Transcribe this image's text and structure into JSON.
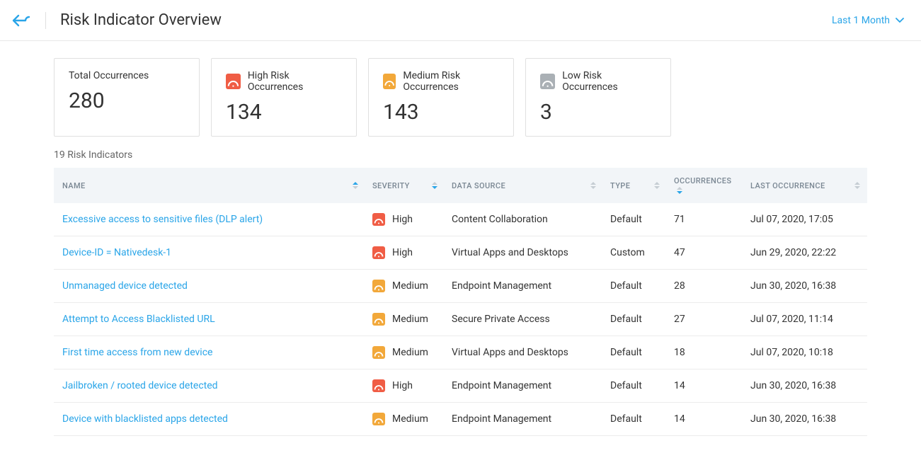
{
  "header": {
    "title": "Risk Indicator Overview",
    "time_range": "Last 1 Month"
  },
  "colors": {
    "accent": "#2aa5e8",
    "high": "#f05d45",
    "medium": "#f2a83a",
    "low": "#aab0b5"
  },
  "cards": {
    "total": {
      "label": "Total Occurrences",
      "value": "280"
    },
    "high": {
      "label": "High Risk Occurrences",
      "value": "134"
    },
    "medium": {
      "label": "Medium Risk Occurrences",
      "value": "143"
    },
    "low": {
      "label": "Low Risk Occurrences",
      "value": "3"
    }
  },
  "table": {
    "count_label": "19 Risk Indicators",
    "columns": {
      "name": "NAME",
      "severity": "SEVERITY",
      "data_source": "DATA SOURCE",
      "type": "TYPE",
      "occurrences": "OCCURRENCES",
      "last_occurrence": "LAST OCCURRENCE"
    },
    "rows": [
      {
        "name": "Excessive access to sensitive files (DLP alert)",
        "severity": "High",
        "sev_level": "high",
        "data_source": "Content Collaboration",
        "type": "Default",
        "occurrences": "71",
        "last": "Jul 07, 2020, 17:05"
      },
      {
        "name": "Device-ID = Nativedesk-1",
        "severity": "High",
        "sev_level": "high",
        "data_source": "Virtual Apps and Desktops",
        "type": "Custom",
        "occurrences": "47",
        "last": "Jun 29, 2020, 22:22"
      },
      {
        "name": "Unmanaged device detected",
        "severity": "Medium",
        "sev_level": "medium",
        "data_source": "Endpoint Management",
        "type": "Default",
        "occurrences": "28",
        "last": "Jun 30, 2020, 16:38"
      },
      {
        "name": "Attempt to Access Blacklisted URL",
        "severity": "Medium",
        "sev_level": "medium",
        "data_source": "Secure Private Access",
        "type": "Default",
        "occurrences": "27",
        "last": "Jul 07, 2020, 11:14"
      },
      {
        "name": "First time access from new device",
        "severity": "Medium",
        "sev_level": "medium",
        "data_source": "Virtual Apps and Desktops",
        "type": "Default",
        "occurrences": "18",
        "last": "Jul 07, 2020, 10:18"
      },
      {
        "name": "Jailbroken / rooted device detected",
        "severity": "High",
        "sev_level": "high",
        "data_source": "Endpoint Management",
        "type": "Default",
        "occurrences": "14",
        "last": "Jun 30, 2020, 16:38"
      },
      {
        "name": "Device with blacklisted apps detected",
        "severity": "Medium",
        "sev_level": "medium",
        "data_source": "Endpoint Management",
        "type": "Default",
        "occurrences": "14",
        "last": "Jun 30, 2020, 16:38"
      }
    ]
  }
}
